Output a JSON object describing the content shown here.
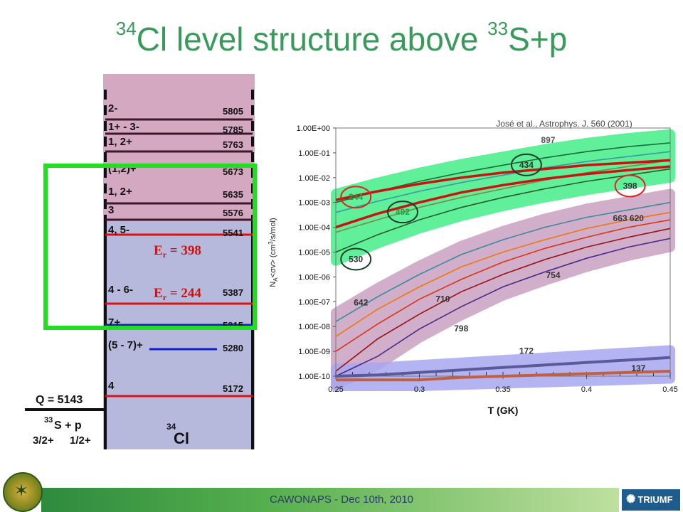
{
  "slide": {
    "title_prefix": "34",
    "title_mid": "Cl level structure above ",
    "title_sup2": "33",
    "title_end": "S+p",
    "footer": "CAWONAPS - Dec 10th, 2010",
    "logo_right": "TRIUMF",
    "colors": {
      "title": "#3a9a5b",
      "highlight_box": "#22dd22",
      "red_line": "#dd1111",
      "blue_line": "#1020cc"
    }
  },
  "level_scheme": {
    "levels": [
      {
        "spin": "2-",
        "energy": "5805"
      },
      {
        "spin": "1+ - 3-",
        "energy": "5785"
      },
      {
        "spin": "1, 2+",
        "energy": "5763"
      },
      {
        "spin": "(1,2)+",
        "energy": "5673"
      },
      {
        "spin": "1, 2+",
        "energy": "5635"
      },
      {
        "spin": "3",
        "energy": "5576"
      },
      {
        "spin": "4, 5-",
        "energy": "5541"
      },
      {
        "spin": "4 - 6-",
        "energy": "5387"
      },
      {
        "spin": "7+",
        "energy": "5315"
      },
      {
        "spin": "(5 - 7)+",
        "energy": "5280"
      },
      {
        "spin": "4",
        "energy": "5172"
      }
    ],
    "er_398": "Er = 398",
    "er_244": "Er = 244",
    "q_value": "Q = 5143",
    "threshold_mass": "33",
    "threshold_label": "S + p",
    "threshold_spin1": "3/2+",
    "threshold_spin2": "1/2+",
    "nucleus_mass": "34",
    "nucleus_symbol": "Cl"
  },
  "chart_data": {
    "type": "line",
    "title": "",
    "xlabel": "T (GK)",
    "ylabel": "NA<σv> (cm3/s/mol)",
    "reference": "José et al., Astrophys. J. 560 (2001)",
    "xlim": [
      0.25,
      0.45
    ],
    "ylim_log10": [
      -10,
      0
    ],
    "x_ticks": [
      "0.25",
      "0.3",
      "0.35",
      "0.4",
      "0.45"
    ],
    "y_ticks": [
      "1.00E+00",
      "1.00E-01",
      "1.00E-02",
      "1.00E-03",
      "1.00E-04",
      "1.00E-05",
      "1.00E-06",
      "1.00E-07",
      "1.00E-08",
      "1.00E-09",
      "1.00E-10"
    ],
    "x": [
      0.25,
      0.275,
      0.3,
      0.325,
      0.35,
      0.375,
      0.4,
      0.425,
      0.45
    ],
    "series_log10": [
      {
        "group": "green",
        "color": "#1a6e3a",
        "values": [
          -3.0,
          -2.55,
          -2.15,
          -1.8,
          -1.5,
          -1.2,
          -0.95,
          -0.75,
          -0.6
        ]
      },
      {
        "group": "green",
        "color": "#3a9aa0",
        "values": [
          -3.4,
          -2.95,
          -2.55,
          -2.2,
          -1.9,
          -1.6,
          -1.35,
          -1.15,
          -0.95
        ]
      },
      {
        "group": "green",
        "color": "#7a8a4a",
        "values": [
          -4.2,
          -3.7,
          -3.2,
          -2.8,
          -2.45,
          -2.1,
          -1.8,
          -1.55,
          -1.3
        ]
      },
      {
        "group": "green",
        "color": "#2a5a2a",
        "values": [
          -5.0,
          -4.3,
          -3.7,
          -3.2,
          -2.8,
          -2.45,
          -2.15,
          -1.9,
          -1.65
        ]
      },
      {
        "group": "pink",
        "color": "#3a8aa0",
        "values": [
          -7.8,
          -6.8,
          -5.9,
          -5.1,
          -4.5,
          -4.0,
          -3.6,
          -3.3,
          -3.0
        ]
      },
      {
        "group": "pink",
        "color": "#ee7711",
        "values": [
          -8.4,
          -7.3,
          -6.4,
          -5.6,
          -5.0,
          -4.5,
          -4.05,
          -3.7,
          -3.4
        ]
      },
      {
        "group": "pink",
        "color": "#dd3311",
        "values": [
          -9.0,
          -7.9,
          -6.9,
          -6.1,
          -5.4,
          -4.85,
          -4.4,
          -4.0,
          -3.7
        ]
      },
      {
        "group": "pink",
        "color": "#9a1111",
        "values": [
          -9.8,
          -8.5,
          -7.5,
          -6.6,
          -5.9,
          -5.3,
          -4.8,
          -4.4,
          -4.05
        ]
      },
      {
        "group": "pink",
        "color": "#4a2a8a",
        "values": [
          -10.0,
          -9.2,
          -8.1,
          -7.2,
          -6.4,
          -5.8,
          -5.25,
          -4.8,
          -4.45
        ]
      },
      {
        "group": "blue",
        "color": "#5a5a9a",
        "values": [
          -10.0,
          -9.95,
          -9.85,
          -9.75,
          -9.65,
          -9.55,
          -9.45,
          -9.35,
          -9.25
        ]
      },
      {
        "group": "blue",
        "color": "#c06040",
        "values": [
          -10.2,
          -10.2,
          -10.15,
          -10.05,
          -10.0,
          -9.95,
          -9.9,
          -9.85,
          -9.8
        ]
      }
    ],
    "red_series_log10": [
      {
        "name": "244",
        "values": [
          -2.9,
          -2.55,
          -2.25,
          -2.0,
          -1.8,
          -1.65,
          -1.5,
          -1.4,
          -1.3
        ]
      },
      {
        "name": "398",
        "values": [
          -4.0,
          -3.45,
          -3.0,
          -2.6,
          -2.3,
          -2.05,
          -1.85,
          -1.7,
          -1.55
        ]
      }
    ],
    "resonance_labels": [
      {
        "text": "897",
        "x": 0.377,
        "y_log10": -0.6,
        "color": "#555555"
      },
      {
        "text": "434",
        "x": 0.364,
        "y_log10": -1.6,
        "color": "#333333",
        "circle": "#1a3a2a"
      },
      {
        "text": "244",
        "x": 0.262,
        "y_log10": -2.9,
        "color": "#2a9a4a",
        "circle": "#dd2222"
      },
      {
        "text": "398",
        "x": 0.426,
        "y_log10": -2.45,
        "color": "#333333",
        "circle": "#dd2222"
      },
      {
        "text": "492",
        "x": 0.29,
        "y_log10": -3.5,
        "color": "#2a9a4a",
        "circle": "#1a3a2a"
      },
      {
        "text": "530",
        "x": 0.262,
        "y_log10": -5.4,
        "color": "#333333",
        "circle": "#1a3a2a"
      },
      {
        "text": "663 620",
        "x": 0.425,
        "y_log10": -3.75,
        "color": "#333333"
      },
      {
        "text": "754",
        "x": 0.38,
        "y_log10": -6.05,
        "color": "#333333"
      },
      {
        "text": "642",
        "x": 0.265,
        "y_log10": -7.15,
        "color": "#333333"
      },
      {
        "text": "710",
        "x": 0.314,
        "y_log10": -7.0,
        "color": "#333333"
      },
      {
        "text": "798",
        "x": 0.325,
        "y_log10": -8.2,
        "color": "#333333"
      },
      {
        "text": "172",
        "x": 0.364,
        "y_log10": -9.1,
        "color": "#333333"
      },
      {
        "text": "137",
        "x": 0.431,
        "y_log10": -9.8,
        "color": "#333333"
      }
    ]
  }
}
